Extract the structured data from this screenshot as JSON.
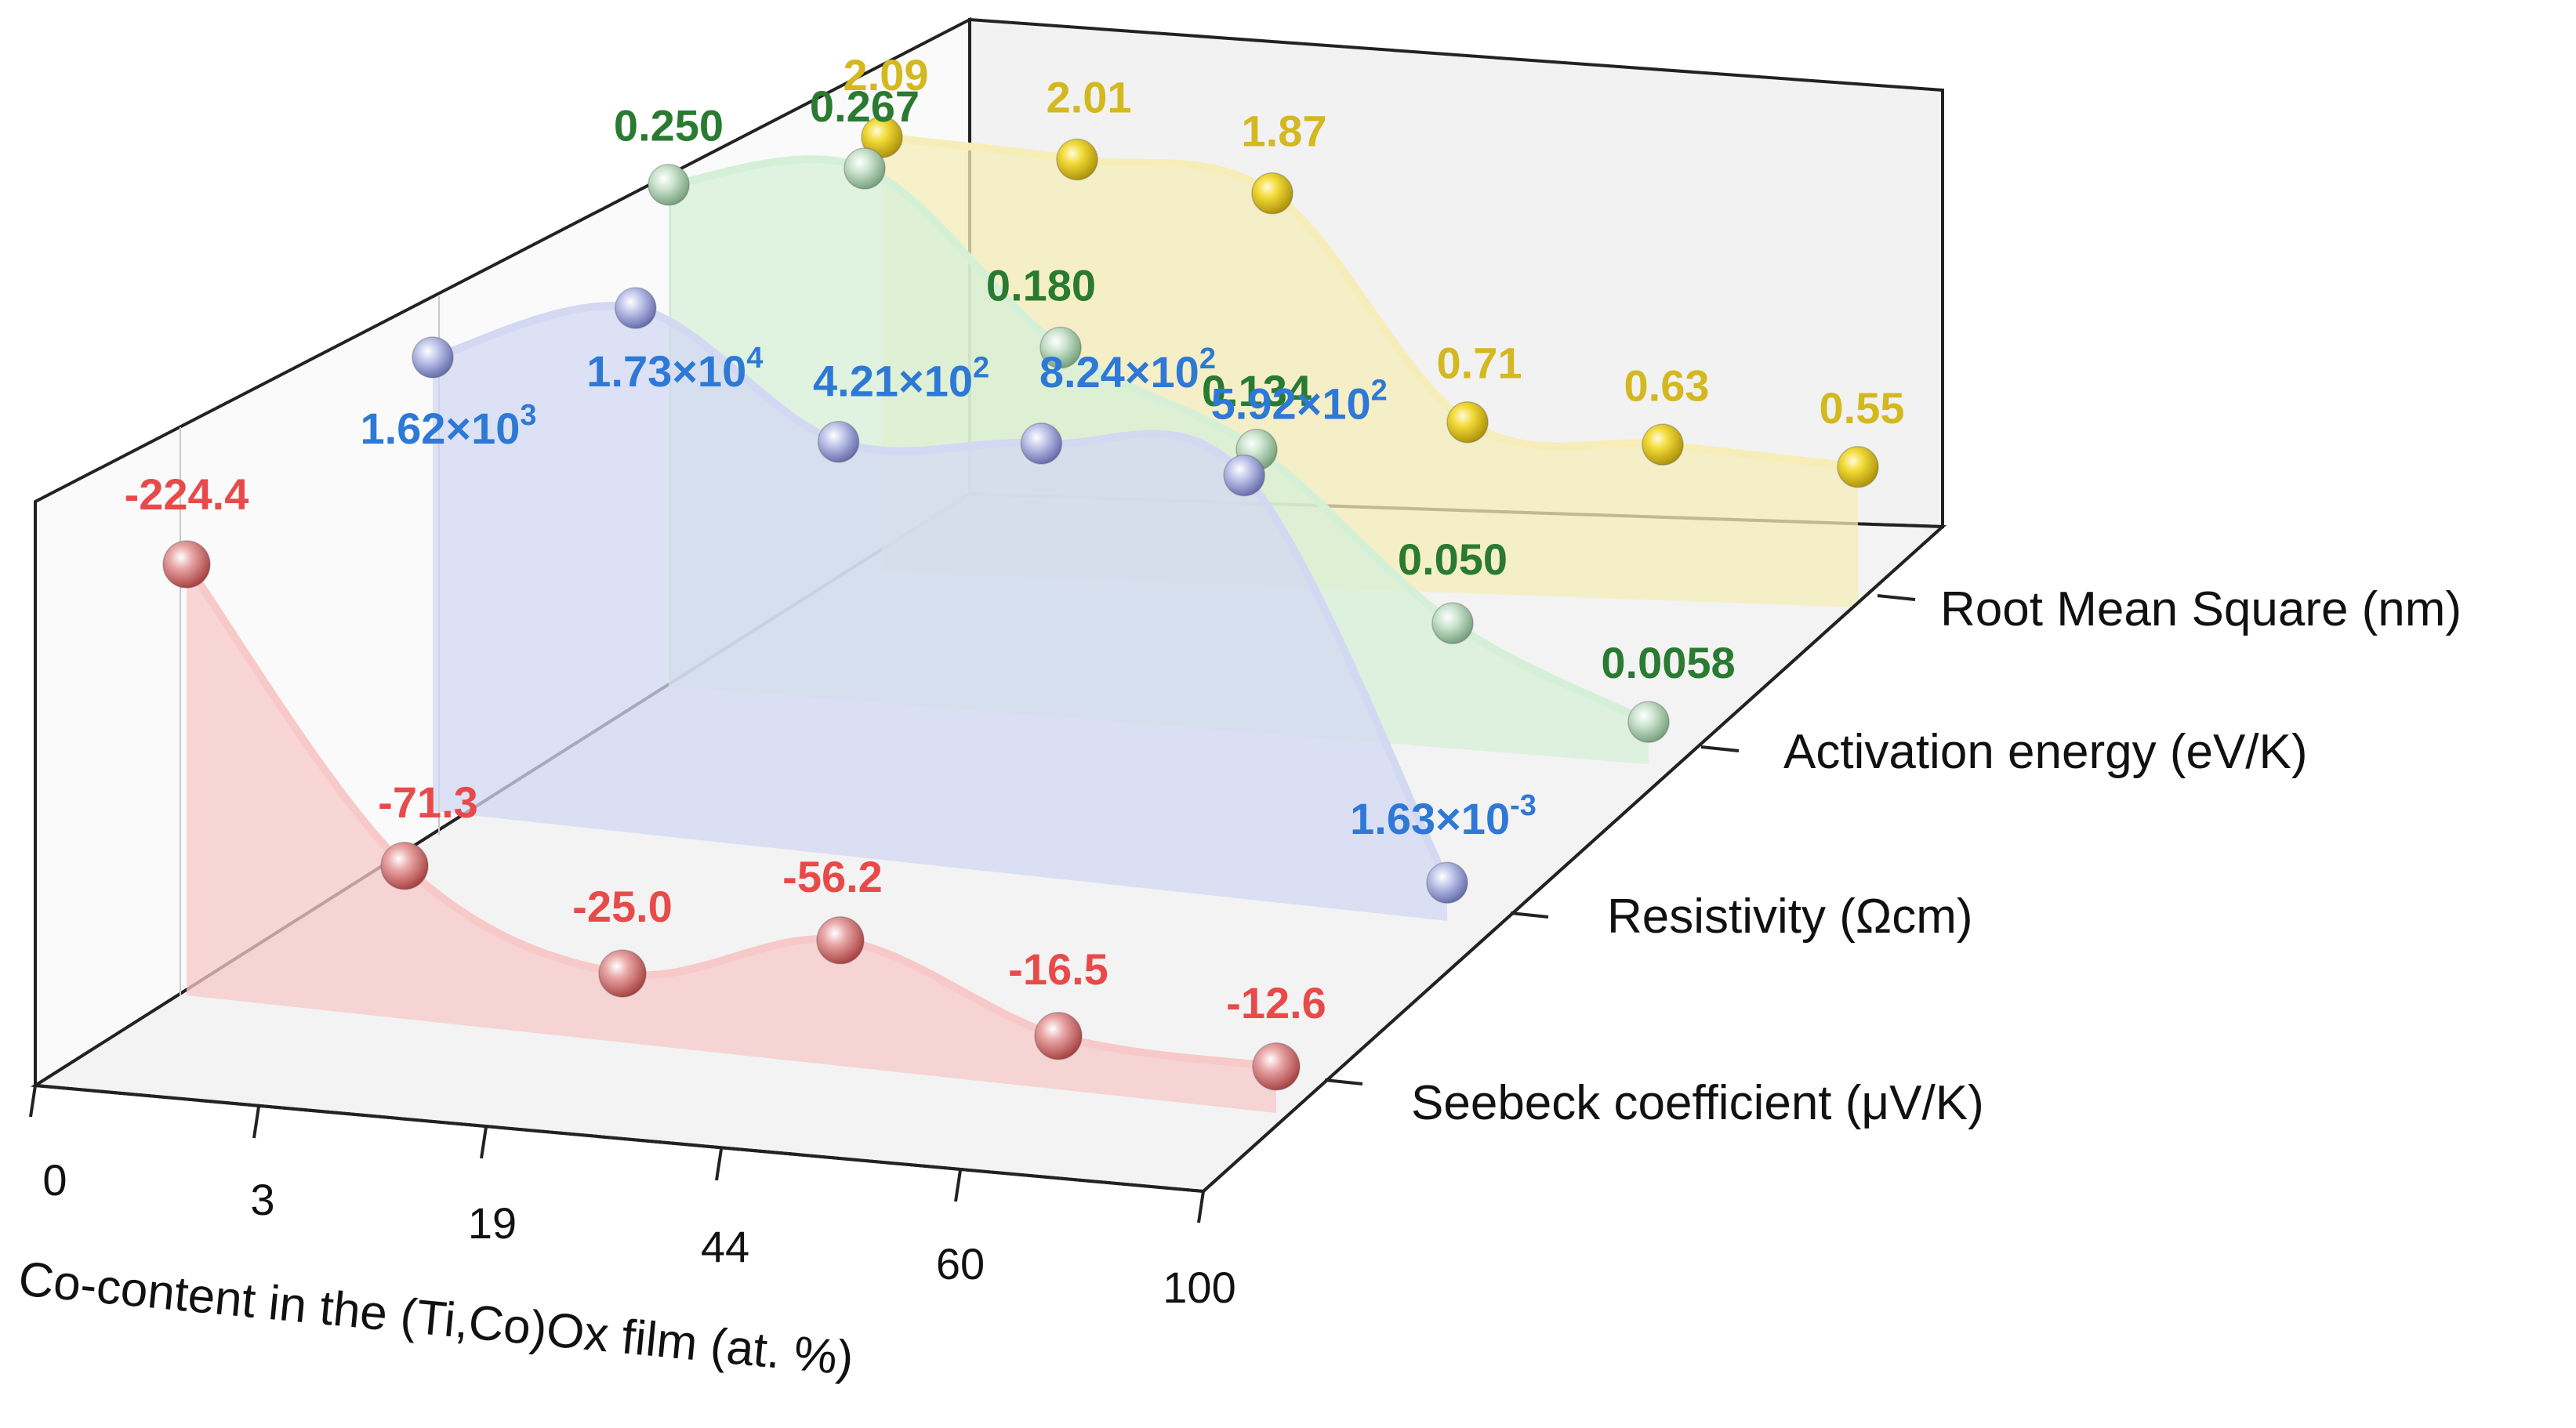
{
  "chart_data": {
    "type": "line",
    "title": "",
    "xlabel": "Co-content in the (Ti,Co)Ox film (at. %)",
    "categories": [
      "0",
      "3",
      "19",
      "44",
      "60",
      "100"
    ],
    "series": [
      {
        "name": "Seebeck coefficient (μV/K)",
        "color": "#e84a4a",
        "ball_color": "#c45a5a",
        "fill_color": "#f7c9c9",
        "values": [
          -224.4,
          -71.3,
          -25.0,
          -56.2,
          -16.5,
          -12.6
        ],
        "labels": [
          {
            "text": "-224.4"
          },
          {
            "text": "-71.3"
          },
          {
            "text": "-25.0"
          },
          {
            "text": "-56.2"
          },
          {
            "text": "-16.5"
          },
          {
            "text": "-12.6"
          }
        ]
      },
      {
        "name": "Resistivity (Ωcm)",
        "color": "#2e79d6",
        "ball_color": "#8e96cc",
        "fill_color": "#d3d8f3",
        "values": [
          1620,
          17300,
          421,
          824,
          592,
          0.00163
        ],
        "labels": [
          {
            "text": "1.62×10",
            "sup": "3"
          },
          {
            "text": "1.73×10",
            "sup": "4"
          },
          {
            "text": "4.21×10",
            "sup": "2"
          },
          {
            "text": "8.24×10",
            "sup": "2"
          },
          {
            "text": "5.92×10",
            "sup": "2"
          },
          {
            "text": "1.63×10",
            "sup": "-3"
          }
        ]
      },
      {
        "name": "Activation energy (eV/K)",
        "color": "#2a7a32",
        "ball_color": "#a3c6a8",
        "fill_color": "#d6f0d7",
        "values": [
          0.25,
          0.267,
          0.18,
          0.134,
          0.05,
          0.0058
        ],
        "labels": [
          {
            "text": "0.250"
          },
          {
            "text": "0.267"
          },
          {
            "text": "0.180"
          },
          {
            "text": "0.134"
          },
          {
            "text": "0.050"
          },
          {
            "text": "0.0058"
          }
        ]
      },
      {
        "name": "Root Mean Square (nm)",
        "color": "#d4b820",
        "ball_color": "#d9bd1c",
        "fill_color": "#f6edb8",
        "values": [
          2.09,
          2.01,
          1.87,
          0.71,
          0.63,
          0.55
        ],
        "labels": [
          {
            "text": "2.09"
          },
          {
            "text": "2.01"
          },
          {
            "text": "1.87"
          },
          {
            "text": "0.71"
          },
          {
            "text": "0.63"
          },
          {
            "text": "0.55"
          }
        ]
      }
    ]
  }
}
